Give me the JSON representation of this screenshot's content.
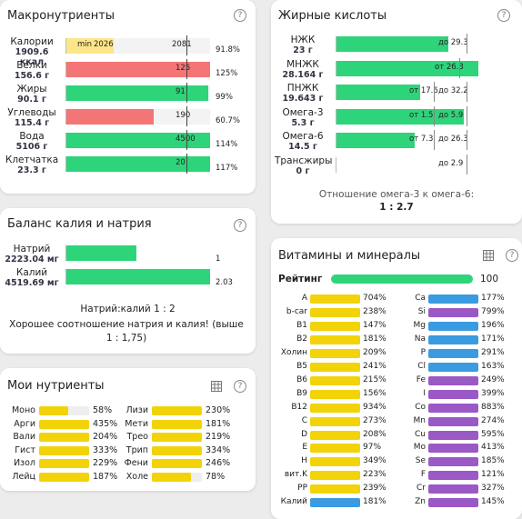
{
  "colors": {
    "green": "#2ed47a",
    "yellow": "#f2d30a",
    "red": "#f47575",
    "light_yellow": "#fde68a",
    "blue": "#3a9be0",
    "purple": "#9b59c6"
  },
  "macro": {
    "title": "Макронутриенты",
    "help": "?",
    "rows": [
      {
        "name": "Калории",
        "value": "1909.6",
        "unit": "ккал",
        "left_text": "min",
        "left_val": "2026",
        "right_val": "2081",
        "percent": "91.8%",
        "fill": 0.33,
        "color": "light_yellow"
      },
      {
        "name": "Белки",
        "value": "156.6 г",
        "bar_val": "125",
        "percent": "125%",
        "fill": 1.0,
        "color": "red"
      },
      {
        "name": "Жиры",
        "value": "90.1 г",
        "bar_val": "91",
        "percent": "99%",
        "fill": 0.99,
        "color": "green"
      },
      {
        "name": "Углеводы",
        "value": "115.4 г",
        "bar_val": "190",
        "percent": "60.7%",
        "fill": 0.607,
        "color": "red"
      },
      {
        "name": "Вода",
        "value": "5106 г",
        "bar_val": "4500",
        "percent": "114%",
        "fill": 1.0,
        "color": "green"
      },
      {
        "name": "Клетчатка",
        "value": "23.3 г",
        "bar_val": "20",
        "percent": "117%",
        "fill": 1.0,
        "color": "green"
      }
    ]
  },
  "fats": {
    "title": "Жирные кислоты",
    "help": "?",
    "rows": [
      {
        "name": "НЖК",
        "value": "23 г",
        "txt1": "",
        "txt2": "до 29.3",
        "fill": 0.79,
        "color": "green"
      },
      {
        "name": "МНЖК",
        "value": "28.164 г",
        "txt1": "от 26.3",
        "txt2": "",
        "fill": 1.0,
        "color": "green"
      },
      {
        "name": "ПНЖК",
        "value": "19.643 г",
        "txt1": "от 17.6",
        "txt2": "до 32.2",
        "fill": 0.59,
        "color": "green"
      },
      {
        "name": "Омега-3",
        "value": "5.3 г",
        "txt1": "от 1.5",
        "txt2": "до 5.9",
        "fill": 0.9,
        "color": "green"
      },
      {
        "name": "Омега-6",
        "value": "14.5 г",
        "txt1": "от 7.3",
        "txt2": "до 26.3",
        "fill": 0.55,
        "color": "green"
      },
      {
        "name": "Трансжиры",
        "value": "0 г",
        "txt1": "",
        "txt2": "до 2.9",
        "fill": 0,
        "color": "green"
      }
    ],
    "ratio_label": "Отношение омега-3 к омега-6:",
    "ratio_value": "1 : 2.7"
  },
  "kna": {
    "title": "Баланс калия и натрия",
    "help": "?",
    "rows": [
      {
        "name": "Натрий",
        "value": "2223.04 мг",
        "num": "1",
        "fill": 0.49
      },
      {
        "name": "Калий",
        "value": "4519.69 мг",
        "num": "2.03",
        "fill": 1.0
      }
    ],
    "ratio": "Натрий:калий 1 : 2",
    "note": "Хорошее соотношение натрия и калия! (выше 1 : 1,75)"
  },
  "my": {
    "title": "Мои нутриенты",
    "help": "?",
    "left": [
      {
        "name": "Моно",
        "pct": "58%",
        "fill": 0.58
      },
      {
        "name": "Арги",
        "pct": "435%",
        "fill": 1
      },
      {
        "name": "Вали",
        "pct": "204%",
        "fill": 1
      },
      {
        "name": "Гист",
        "pct": "333%",
        "fill": 1
      },
      {
        "name": "Изол",
        "pct": "229%",
        "fill": 1
      },
      {
        "name": "Лейц",
        "pct": "187%",
        "fill": 1
      }
    ],
    "right": [
      {
        "name": "Лизи",
        "pct": "230%",
        "fill": 1
      },
      {
        "name": "Мети",
        "pct": "181%",
        "fill": 1
      },
      {
        "name": "Трео",
        "pct": "219%",
        "fill": 1
      },
      {
        "name": "Трип",
        "pct": "334%",
        "fill": 1
      },
      {
        "name": "Фени",
        "pct": "246%",
        "fill": 1
      },
      {
        "name": "Холе",
        "pct": "78%",
        "fill": 0.78
      }
    ]
  },
  "vit": {
    "title": "Витамины и минералы",
    "help": "?",
    "rating_label": "Рейтинг",
    "rating_value": "100",
    "left": [
      {
        "name": "A",
        "pct": "704%",
        "color": "yellow"
      },
      {
        "name": "b-car",
        "pct": "238%",
        "color": "yellow"
      },
      {
        "name": "B1",
        "pct": "147%",
        "color": "yellow"
      },
      {
        "name": "B2",
        "pct": "181%",
        "color": "yellow"
      },
      {
        "name": "Холин",
        "pct": "209%",
        "color": "yellow"
      },
      {
        "name": "B5",
        "pct": "241%",
        "color": "yellow"
      },
      {
        "name": "B6",
        "pct": "215%",
        "color": "yellow"
      },
      {
        "name": "B9",
        "pct": "156%",
        "color": "yellow"
      },
      {
        "name": "B12",
        "pct": "934%",
        "color": "yellow"
      },
      {
        "name": "C",
        "pct": "273%",
        "color": "yellow"
      },
      {
        "name": "D",
        "pct": "208%",
        "color": "yellow"
      },
      {
        "name": "E",
        "pct": "97%",
        "color": "yellow"
      },
      {
        "name": "H",
        "pct": "349%",
        "color": "yellow"
      },
      {
        "name": "вит.K",
        "pct": "223%",
        "color": "yellow"
      },
      {
        "name": "PP",
        "pct": "239%",
        "color": "yellow"
      },
      {
        "name": "Калий",
        "pct": "181%",
        "color": "blue"
      }
    ],
    "right": [
      {
        "name": "Ca",
        "pct": "177%",
        "color": "blue"
      },
      {
        "name": "Si",
        "pct": "799%",
        "color": "purple"
      },
      {
        "name": "Mg",
        "pct": "196%",
        "color": "blue"
      },
      {
        "name": "Na",
        "pct": "171%",
        "color": "blue"
      },
      {
        "name": "P",
        "pct": "291%",
        "color": "blue"
      },
      {
        "name": "Cl",
        "pct": "163%",
        "color": "blue"
      },
      {
        "name": "Fe",
        "pct": "249%",
        "color": "purple"
      },
      {
        "name": "I",
        "pct": "399%",
        "color": "purple"
      },
      {
        "name": "Co",
        "pct": "883%",
        "color": "purple"
      },
      {
        "name": "Mn",
        "pct": "274%",
        "color": "purple"
      },
      {
        "name": "Cu",
        "pct": "595%",
        "color": "purple"
      },
      {
        "name": "Mo",
        "pct": "413%",
        "color": "purple"
      },
      {
        "name": "Se",
        "pct": "185%",
        "color": "purple"
      },
      {
        "name": "F",
        "pct": "121%",
        "color": "purple"
      },
      {
        "name": "Cr",
        "pct": "327%",
        "color": "purple"
      },
      {
        "name": "Zn",
        "pct": "145%",
        "color": "purple"
      }
    ]
  }
}
